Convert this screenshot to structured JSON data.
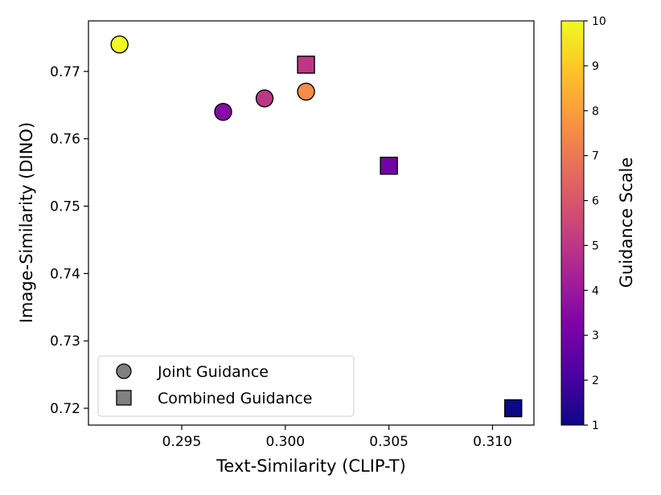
{
  "chart_data": {
    "type": "scatter",
    "xlabel": "Text-Similarity (CLIP-T)",
    "ylabel": "Image-Similarity (DINO)",
    "xlim": [
      0.2905,
      0.312
    ],
    "ylim": [
      0.7175,
      0.7775
    ],
    "xticks": [
      0.295,
      0.3,
      0.305,
      0.31
    ],
    "xtick_labels": [
      "0.295",
      "0.300",
      "0.305",
      "0.310"
    ],
    "yticks": [
      0.72,
      0.73,
      0.74,
      0.75,
      0.76,
      0.77
    ],
    "ytick_labels": [
      "0.72",
      "0.73",
      "0.74",
      "0.75",
      "0.76",
      "0.77"
    ],
    "colorbar": {
      "label": "Guidance Scale",
      "min": 1,
      "max": 10,
      "colormap": "plasma",
      "ticks": [
        1,
        2,
        3,
        4,
        5,
        6,
        7,
        8,
        9,
        10
      ],
      "tick_labels": [
        "1",
        "2",
        "3",
        "4",
        "5",
        "6",
        "7",
        "8",
        "9",
        "10"
      ]
    },
    "legend": {
      "placement": "lower-left",
      "entries": [
        {
          "label": "Joint Guidance",
          "marker": "circle",
          "color": "#808080"
        },
        {
          "label": "Combined Guidance",
          "marker": "square",
          "color": "#808080"
        }
      ]
    },
    "series": [
      {
        "name": "Joint Guidance",
        "marker": "circle",
        "points": [
          {
            "x": 0.292,
            "y": 0.774,
            "guidance": 10
          },
          {
            "x": 0.297,
            "y": 0.764,
            "guidance": 3.5
          },
          {
            "x": 0.299,
            "y": 0.766,
            "guidance": 5
          },
          {
            "x": 0.301,
            "y": 0.767,
            "guidance": 7.5
          }
        ]
      },
      {
        "name": "Combined Guidance",
        "marker": "square",
        "points": [
          {
            "x": 0.301,
            "y": 0.771,
            "guidance": 5
          },
          {
            "x": 0.305,
            "y": 0.756,
            "guidance": 3
          },
          {
            "x": 0.311,
            "y": 0.72,
            "guidance": 1
          }
        ]
      }
    ]
  }
}
